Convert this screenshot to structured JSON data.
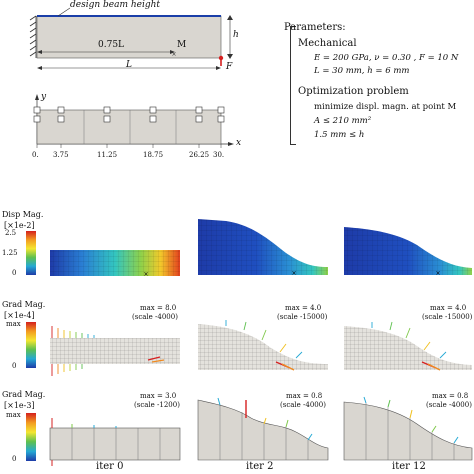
{
  "top_diagram": {
    "annotation": "design beam height",
    "h_label": "h",
    "length_label": "L",
    "pos_label": "0.75L",
    "point_label": "M",
    "force_label": "F"
  },
  "params": {
    "title": "Parameters:",
    "mech_title": "Mechanical",
    "mech_line1": "E = 200 GPa, ν = 0.30 , F = 10 N",
    "mech_line2": "L = 30 mm, h = 6 mm",
    "opt_title": "Optimization problem",
    "opt_line1": "minimize displ. magn. at point M",
    "opt_line2": "A ≤ 210 mm²",
    "opt_line3": "1.5 mm ≤ h"
  },
  "mesh_diagram": {
    "x_axis": "x",
    "y_axis": "y",
    "ticks": [
      "0.",
      "3.75",
      "11.25",
      "18.75",
      "26.25",
      "30."
    ]
  },
  "rows": {
    "disp": {
      "label": "Disp Mag.",
      "scale": "[×1e-2]",
      "ticks": [
        "2.5",
        "1.25",
        "0"
      ]
    },
    "grad4": {
      "label": "Grad Mag.",
      "scale": "[×1e-4]",
      "top": "max",
      "bottom": "0"
    },
    "grad3": {
      "label": "Grad Mag.",
      "scale": "[×1e-3]",
      "top": "max",
      "bottom": "0"
    }
  },
  "annotations": {
    "r2c0": [
      "max = 8.0",
      "(scale -4000)"
    ],
    "r2c1": [
      "max = 4.0",
      "(scale -15000)"
    ],
    "r2c2": [
      "max = 4.0",
      "(scale -15000)"
    ],
    "r3c0": [
      "max = 3.0",
      "(scale -1200)"
    ],
    "r3c1": [
      "max = 0.8",
      "(scale -4000)"
    ],
    "r3c2": [
      "max = 0.8",
      "(scale -4000)"
    ]
  },
  "iters": [
    "iter 0",
    "iter 2",
    "iter 12"
  ],
  "colors": {
    "steel": "#d9d6d0",
    "top_edge": "#1a3ea8",
    "force": "#d62020"
  }
}
